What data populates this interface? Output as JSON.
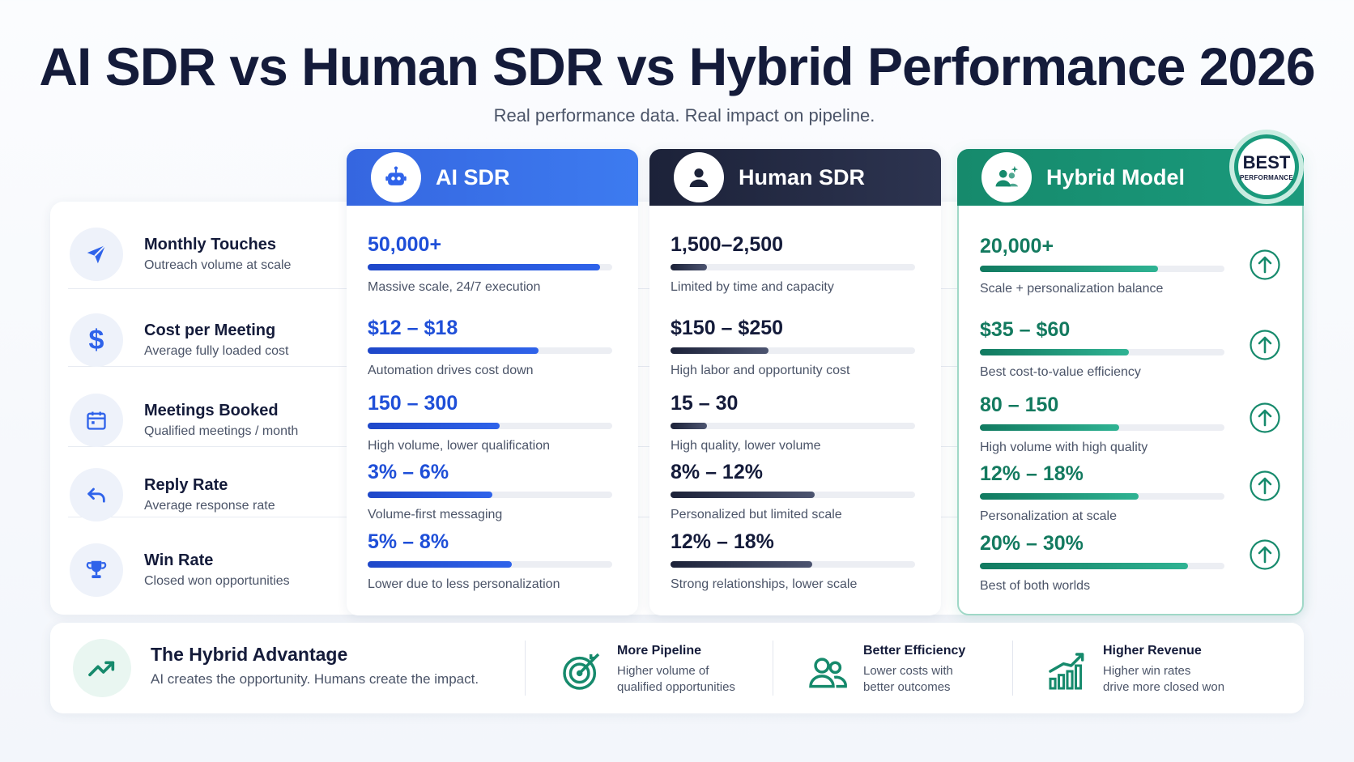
{
  "title": "AI SDR vs Human SDR vs Hybrid Performance 2026",
  "subtitle": "Real performance data. Real impact on pipeline.",
  "metrics": [
    {
      "name": "Monthly Touches",
      "sub": "Outreach volume at scale",
      "icon": "paper-plane-icon"
    },
    {
      "name": "Cost per Meeting",
      "sub": "Average fully loaded cost",
      "icon": "dollar-icon"
    },
    {
      "name": "Meetings Booked",
      "sub": "Qualified meetings / month",
      "icon": "calendar-icon"
    },
    {
      "name": "Reply Rate",
      "sub": "Average response rate",
      "icon": "reply-arrow-icon"
    },
    {
      "name": "Win Rate",
      "sub": "Closed won opportunities",
      "icon": "trophy-icon"
    }
  ],
  "columns": {
    "ai": {
      "label": "AI SDR",
      "icon": "robot-icon",
      "color": "#2f63ea",
      "cells": [
        {
          "value": "50,000+",
          "fill": 0.95,
          "note": "Massive scale, 24/7 execution"
        },
        {
          "value": "$12 – $18",
          "fill": 0.7,
          "note": "Automation drives cost down"
        },
        {
          "value": "150 – 300",
          "fill": 0.54,
          "note": "High volume, lower qualification"
        },
        {
          "value": "3% – 6%",
          "fill": 0.51,
          "note": "Volume-first messaging"
        },
        {
          "value": "5% – 8%",
          "fill": 0.59,
          "note": "Lower due to less personalization"
        }
      ]
    },
    "human": {
      "label": "Human SDR",
      "icon": "person-icon",
      "color": "#1c2239",
      "cells": [
        {
          "value": "1,500–2,500",
          "fill": 0.15,
          "note": "Limited by time and capacity"
        },
        {
          "value": "$150 – $250",
          "fill": 0.4,
          "note": "High labor and opportunity cost"
        },
        {
          "value": "15 – 30",
          "fill": 0.15,
          "note": "High quality, lower volume"
        },
        {
          "value": "8% – 12%",
          "fill": 0.59,
          "note": "Personalized but limited scale"
        },
        {
          "value": "12% – 18%",
          "fill": 0.58,
          "note": "Strong relationships, lower scale"
        }
      ]
    },
    "hybrid": {
      "label": "Hybrid Model",
      "icon": "team-sparkle-icon",
      "color": "#168a6c",
      "cells": [
        {
          "value": "20,000+",
          "fill": 0.73,
          "note": "Scale + personalization balance"
        },
        {
          "value": "$35 – $60",
          "fill": 0.61,
          "note": "Best cost-to-value efficiency"
        },
        {
          "value": "80 – 150",
          "fill": 0.57,
          "note": "High volume with high quality"
        },
        {
          "value": "12% – 18%",
          "fill": 0.65,
          "note": "Personalization at scale"
        },
        {
          "value": "20% – 30%",
          "fill": 0.85,
          "note": "Best of both worlds"
        }
      ]
    }
  },
  "badge": {
    "main": "BEST",
    "sub": "PERFORMANCE",
    "icon": "ribbon-badge-icon"
  },
  "advantage": {
    "title": "The Hybrid Advantage",
    "sub": "AI creates the opportunity. Humans create the impact.",
    "icon": "trend-up-icon"
  },
  "features": [
    {
      "title": "More Pipeline",
      "line1": "Higher volume of",
      "line2": "qualified opportunities",
      "icon": "target-icon"
    },
    {
      "title": "Better Efficiency",
      "line1": "Lower costs with",
      "line2": "better outcomes",
      "icon": "users-icon"
    },
    {
      "title": "Higher Revenue",
      "line1": "Higher win rates",
      "line2": "drive more closed won",
      "icon": "bar-growth-icon"
    }
  ]
}
